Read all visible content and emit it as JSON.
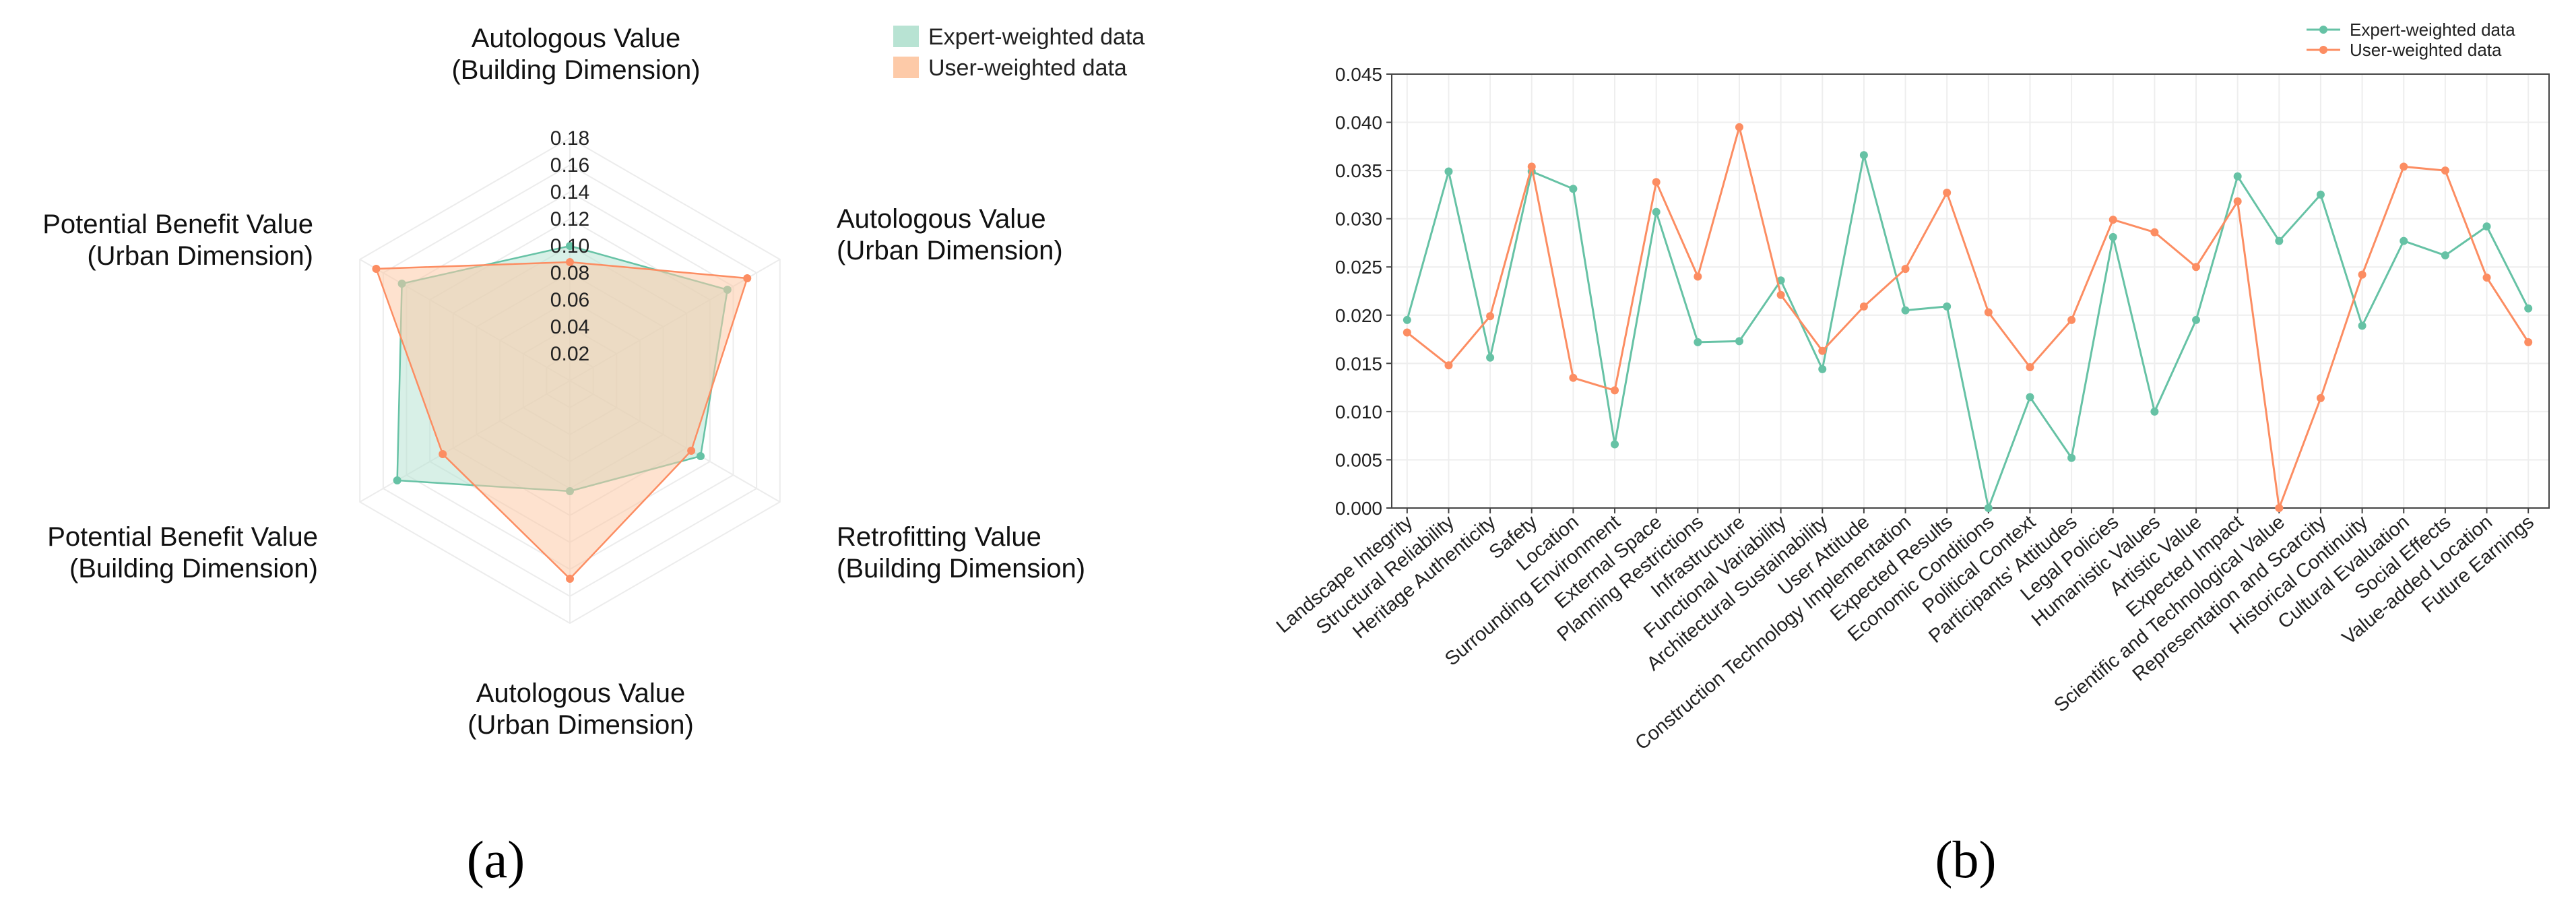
{
  "panels": {
    "a": "(a)",
    "b": "(b)"
  },
  "colors": {
    "expert": "#66c2a5",
    "user": "#fc8d62",
    "expert_fill": "#b8e3d3",
    "user_fill": "#fdcaa8"
  },
  "chart_data": [
    {
      "type": "radar",
      "panel": "(a)",
      "axes": [
        [
          "Autologous Value",
          "(Building Dimension)"
        ],
        [
          "Autologous Value",
          "(Urban Dimension)"
        ],
        [
          "Retrofitting Value",
          "(Building Dimension)"
        ],
        [
          "Autologous Value",
          "(Urban Dimension)"
        ],
        [
          "Potential Benefit Value",
          "(Building Dimension)"
        ],
        [
          "Potential Benefit Value",
          "(Urban Dimension)"
        ]
      ],
      "radial_ticks": [
        "0.02",
        "0.04",
        "0.06",
        "0.08",
        "0.10",
        "0.12",
        "0.14",
        "0.16",
        "0.18"
      ],
      "rmax": 0.18,
      "legend": [
        "Expert-weighted data",
        "User-weighted data"
      ],
      "series": [
        {
          "name": "Expert-weighted data",
          "values": [
            0.1,
            0.135,
            0.112,
            0.082,
            0.148,
            0.144
          ]
        },
        {
          "name": "User-weighted data",
          "values": [
            0.088,
            0.152,
            0.104,
            0.147,
            0.109,
            0.166
          ]
        }
      ]
    },
    {
      "type": "line",
      "panel": "(b)",
      "categories": [
        "Landscape Integrity",
        "Structural Reliability",
        "Heritage Authenticity",
        "Safety",
        "Location",
        "Surrounding Environment",
        "External Space",
        "Planning Restrictions",
        "Infrastructure",
        "Functional Variability",
        "Architectural Sustainability",
        "User Attitude",
        "Construction Technology Implementation",
        "Expected Results",
        "Economic Conditions",
        "Political Context",
        "Participants' Attitudes",
        "Legal Policies",
        "Humanistic Values",
        "Artistic Value",
        "Expected Impact",
        "Scientific and Technological Value",
        "Representation and Scarcity",
        "Historical Continuity",
        "Cultural Evaluation",
        "Social Effects",
        "Value-added Location",
        "Future Earnings"
      ],
      "ylim": [
        0,
        0.045
      ],
      "yticks": [
        "0.000",
        "0.005",
        "0.010",
        "0.015",
        "0.020",
        "0.025",
        "0.030",
        "0.035",
        "0.040",
        "0.045"
      ],
      "legend": [
        "Expert-weighted data",
        "User-weighted data"
      ],
      "series": [
        {
          "name": "Expert-weighted data",
          "values": [
            0.0195,
            0.0349,
            0.0156,
            0.0349,
            0.0331,
            0.0066,
            0.0307,
            0.0172,
            0.0173,
            0.0236,
            0.0144,
            0.0366,
            0.0205,
            0.0209,
            0.0,
            0.0115,
            0.0052,
            0.0281,
            0.01,
            0.0195,
            0.0344,
            0.0277,
            0.0325,
            0.0189,
            0.0277,
            0.0262,
            0.0292,
            0.0207
          ]
        },
        {
          "name": "User-weighted data",
          "values": [
            0.0182,
            0.0148,
            0.0199,
            0.0354,
            0.0135,
            0.0122,
            0.0338,
            0.024,
            0.0395,
            0.0221,
            0.0163,
            0.0209,
            0.0248,
            0.0327,
            0.0203,
            0.0146,
            0.0195,
            0.0299,
            0.0286,
            0.025,
            0.0318,
            0.0,
            0.0114,
            0.0242,
            0.0354,
            0.035,
            0.0239,
            0.0172
          ]
        }
      ]
    }
  ]
}
